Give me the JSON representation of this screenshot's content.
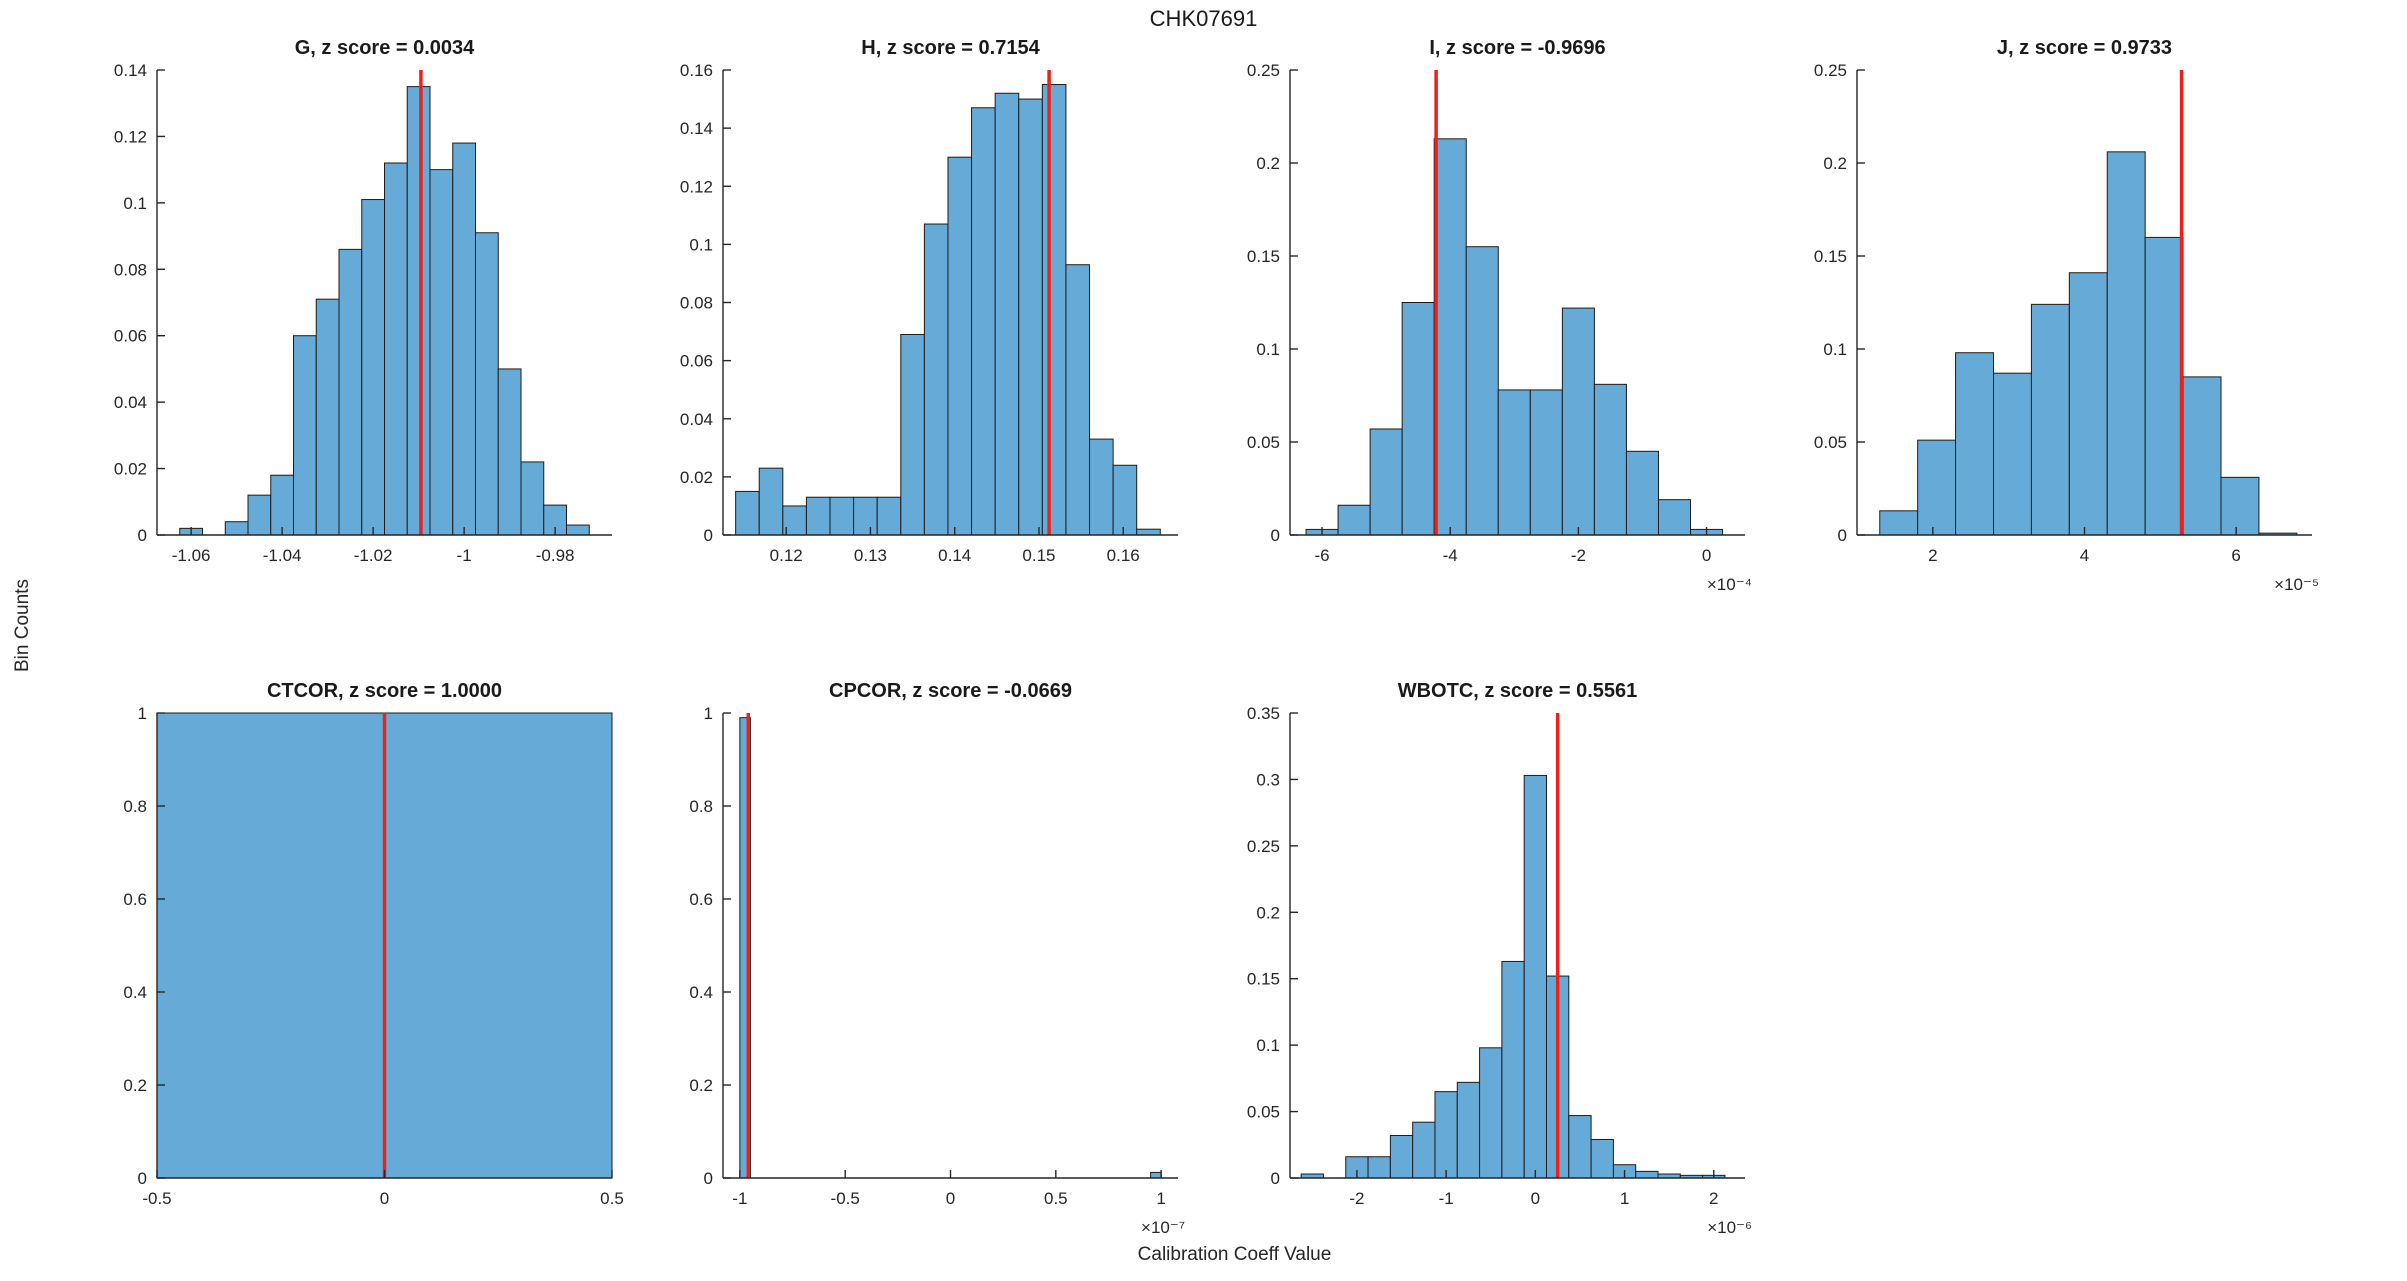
{
  "figure": {
    "title": "CHK07691",
    "xlabel": "Calibration Coeff Value",
    "ylabel": "Bin Counts"
  },
  "colors": {
    "bar_fill": "#66aad7",
    "bar_edge": "#1c1c1c",
    "red_line": "#ee2119",
    "axis": "#262626",
    "text": "#262626"
  },
  "chart_data": [
    {
      "type": "bar",
      "name": "G",
      "title": "G, z score = 0.0034",
      "z_score": 0.0034,
      "row": 0,
      "col": 0,
      "bins": {
        "start": -1.0625,
        "width": 0.005
      },
      "values": [
        0.002,
        0,
        0.004,
        0.012,
        0.018,
        0.06,
        0.071,
        0.086,
        0.101,
        0.112,
        0.135,
        0.11,
        0.118,
        0.091,
        0.05,
        0.022,
        0.009,
        0.003
      ],
      "xlim": [
        -1.0675,
        -0.9675
      ],
      "ylim": [
        0,
        0.14
      ],
      "xticks": [
        -1.06,
        -1.04,
        -1.02,
        -1,
        -0.98
      ],
      "xtick_labels": [
        "-1.06",
        "-1.04",
        "-1.02",
        "-1",
        "-0.98"
      ],
      "yticks": [
        0,
        0.02,
        0.04,
        0.06,
        0.08,
        0.1,
        0.12,
        0.14
      ],
      "ytick_labels": [
        "0",
        "0.02",
        "0.04",
        "0.06",
        "0.08",
        "0.1",
        "0.12",
        "0.14"
      ],
      "red_line_x": -1.0095,
      "exponent_label": ""
    },
    {
      "type": "bar",
      "name": "H",
      "title": "H, z score = 0.7154",
      "z_score": 0.7154,
      "row": 0,
      "col": 1,
      "bins": {
        "start": 0.114,
        "width": 0.0028
      },
      "values": [
        0.015,
        0.023,
        0.01,
        0.013,
        0.013,
        0.013,
        0.013,
        0.069,
        0.107,
        0.13,
        0.147,
        0.152,
        0.15,
        0.155,
        0.093,
        0.033,
        0.024,
        0.002
      ],
      "xlim": [
        0.1125,
        0.1665
      ],
      "ylim": [
        0,
        0.16
      ],
      "xticks": [
        0.12,
        0.13,
        0.14,
        0.15,
        0.16
      ],
      "xtick_labels": [
        "0.12",
        "0.13",
        "0.14",
        "0.15",
        "0.16"
      ],
      "yticks": [
        0,
        0.02,
        0.04,
        0.06,
        0.08,
        0.1,
        0.12,
        0.14,
        0.16
      ],
      "ytick_labels": [
        "0",
        "0.02",
        "0.04",
        "0.06",
        "0.08",
        "0.1",
        "0.12",
        "0.14",
        "0.16"
      ],
      "red_line_x": 0.1512,
      "exponent_label": ""
    },
    {
      "type": "bar",
      "name": "I",
      "title": "I, z score = -0.9696",
      "z_score": -0.9696,
      "row": 0,
      "col": 2,
      "x_scale": "1e-4",
      "bins": {
        "start": -6.25,
        "width": 0.5
      },
      "values": [
        0.003,
        0.016,
        0.057,
        0.125,
        0.213,
        0.155,
        0.078,
        0.078,
        0.122,
        0.081,
        0.045,
        0.019,
        0.003
      ],
      "xlim": [
        -6.5,
        0.6
      ],
      "ylim": [
        0,
        0.25
      ],
      "xticks": [
        -6,
        -4,
        -2,
        0
      ],
      "xtick_labels": [
        "-6",
        "-4",
        "-2",
        "0"
      ],
      "yticks": [
        0,
        0.05,
        0.1,
        0.15,
        0.2,
        0.25
      ],
      "ytick_labels": [
        "0",
        "0.05",
        "0.1",
        "0.15",
        "0.2",
        "0.25"
      ],
      "red_line_x": -4.22,
      "exponent_label": "×10⁻⁴"
    },
    {
      "type": "bar",
      "name": "J",
      "title": "J, z score = 0.9733",
      "z_score": 0.9733,
      "row": 0,
      "col": 3,
      "x_scale": "1e-5",
      "bins": {
        "start": 1.3,
        "width": 0.5
      },
      "values": [
        0.013,
        0.051,
        0.098,
        0.087,
        0.124,
        0.141,
        0.206,
        0.16,
        0.085,
        0.031,
        0.001
      ],
      "xlim": [
        1.0,
        7.0
      ],
      "ylim": [
        0,
        0.25
      ],
      "xticks": [
        2,
        4,
        6
      ],
      "xtick_labels": [
        "2",
        "4",
        "6"
      ],
      "yticks": [
        0,
        0.05,
        0.1,
        0.15,
        0.2,
        0.25
      ],
      "ytick_labels": [
        "0",
        "0.05",
        "0.1",
        "0.15",
        "0.2",
        "0.25"
      ],
      "red_line_x": 5.28,
      "exponent_label": "×10⁻⁵"
    },
    {
      "type": "bar",
      "name": "CTCOR",
      "title": "CTCOR, z score = 1.0000",
      "z_score": 1.0,
      "row": 1,
      "col": 0,
      "bins": {
        "start": -0.5,
        "width": 1.0
      },
      "values": [
        1.0
      ],
      "xlim": [
        -0.5,
        0.5
      ],
      "ylim": [
        0,
        1
      ],
      "xticks": [
        -0.5,
        0,
        0.5
      ],
      "xtick_labels": [
        "-0.5",
        "0",
        "0.5"
      ],
      "yticks": [
        0,
        0.2,
        0.4,
        0.6,
        0.8,
        1
      ],
      "ytick_labels": [
        "0",
        "0.2",
        "0.4",
        "0.6",
        "0.8",
        "1"
      ],
      "red_line_x": 0,
      "exponent_label": ""
    },
    {
      "type": "bar",
      "name": "CPCOR",
      "title": "CPCOR, z score = -0.0669",
      "z_score": -0.0669,
      "row": 1,
      "col": 1,
      "x_scale": "1e-7",
      "bins": {
        "start": -1.0,
        "width": 0.05
      },
      "values": [
        0.99,
        0,
        0,
        0,
        0,
        0,
        0,
        0,
        0,
        0,
        0,
        0,
        0,
        0,
        0,
        0,
        0,
        0,
        0,
        0,
        0,
        0,
        0,
        0,
        0,
        0,
        0,
        0,
        0,
        0,
        0,
        0,
        0,
        0,
        0,
        0,
        0,
        0,
        0,
        0.012
      ],
      "xlim": [
        -1.08,
        1.08
      ],
      "ylim": [
        0,
        1
      ],
      "xticks": [
        -1,
        -0.5,
        0,
        0.5,
        1
      ],
      "xtick_labels": [
        "-1",
        "-0.5",
        "0",
        "0.5",
        "1"
      ],
      "yticks": [
        0,
        0.2,
        0.4,
        0.6,
        0.8,
        1
      ],
      "ytick_labels": [
        "0",
        "0.2",
        "0.4",
        "0.6",
        "0.8",
        "1"
      ],
      "red_line_x": -0.96,
      "exponent_label": "×10⁻⁷"
    },
    {
      "type": "bar",
      "name": "WBOTC",
      "title": "WBOTC, z score = 0.5561",
      "z_score": 0.5561,
      "row": 1,
      "col": 2,
      "x_scale": "1e-6",
      "bins": {
        "start": -2.625,
        "width": 0.25
      },
      "values": [
        0.003,
        0,
        0.016,
        0.016,
        0.032,
        0.042,
        0.065,
        0.072,
        0.098,
        0.163,
        0.303,
        0.152,
        0.047,
        0.029,
        0.01,
        0.005,
        0.003,
        0.002,
        0.002
      ],
      "xlim": [
        -2.75,
        2.35
      ],
      "ylim": [
        0,
        0.35
      ],
      "xticks": [
        -2,
        -1,
        0,
        1,
        2
      ],
      "xtick_labels": [
        "-2",
        "-1",
        "0",
        "1",
        "2"
      ],
      "yticks": [
        0,
        0.05,
        0.1,
        0.15,
        0.2,
        0.25,
        0.3,
        0.35
      ],
      "ytick_labels": [
        "0",
        "0.05",
        "0.1",
        "0.15",
        "0.2",
        "0.25",
        "0.3",
        "0.35"
      ],
      "red_line_x": 0.25,
      "exponent_label": "×10⁻⁶"
    }
  ]
}
